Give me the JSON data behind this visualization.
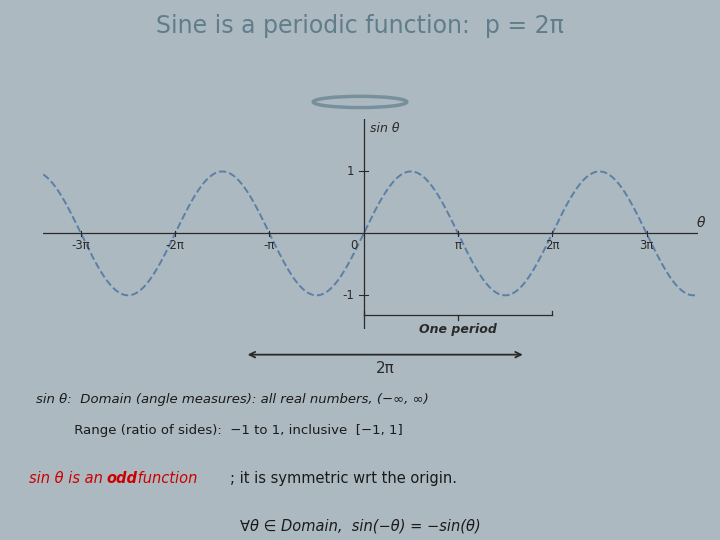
{
  "title": "Sine is a periodic function:  p = 2π",
  "bg_outer": "#adb9c0",
  "bg_inner": "#b8c5cc",
  "plot_bg_color": "#dce4e8",
  "header_bg": "#c8d4d9",
  "curve_color": "#5b7fa6",
  "axis_color": "#2a2a2a",
  "text_color": "#1a1a1a",
  "x_ticks": [
    -3,
    -2,
    -1,
    0,
    1,
    2,
    3
  ],
  "x_tick_labels": [
    "-3π",
    "-2π",
    "-π",
    "0",
    "π",
    "2π",
    "3π"
  ],
  "y_ticks": [
    -1,
    1
  ],
  "xlim": [
    -3.4,
    3.55
  ],
  "ylim": [
    -1.55,
    1.85
  ],
  "ylabel": "sin θ",
  "xlabel": "θ",
  "one_period_text": "One period",
  "arrow_label": "2π",
  "domain_line1": "sin θ:  Domain (angle measures): all real numbers, (−∞, ∞)",
  "domain_line2": "         Range (ratio of sides):  −1 to 1, inclusive  [−1, 1]",
  "odd_pre": "sin θ is an ",
  "odd_bold": "odd",
  "odd_post": " function",
  "odd_suffix": "; it is symmetric wrt the origin.",
  "formula": "∀θ ∈ Domain,  sin(−θ) = −sin(θ)"
}
